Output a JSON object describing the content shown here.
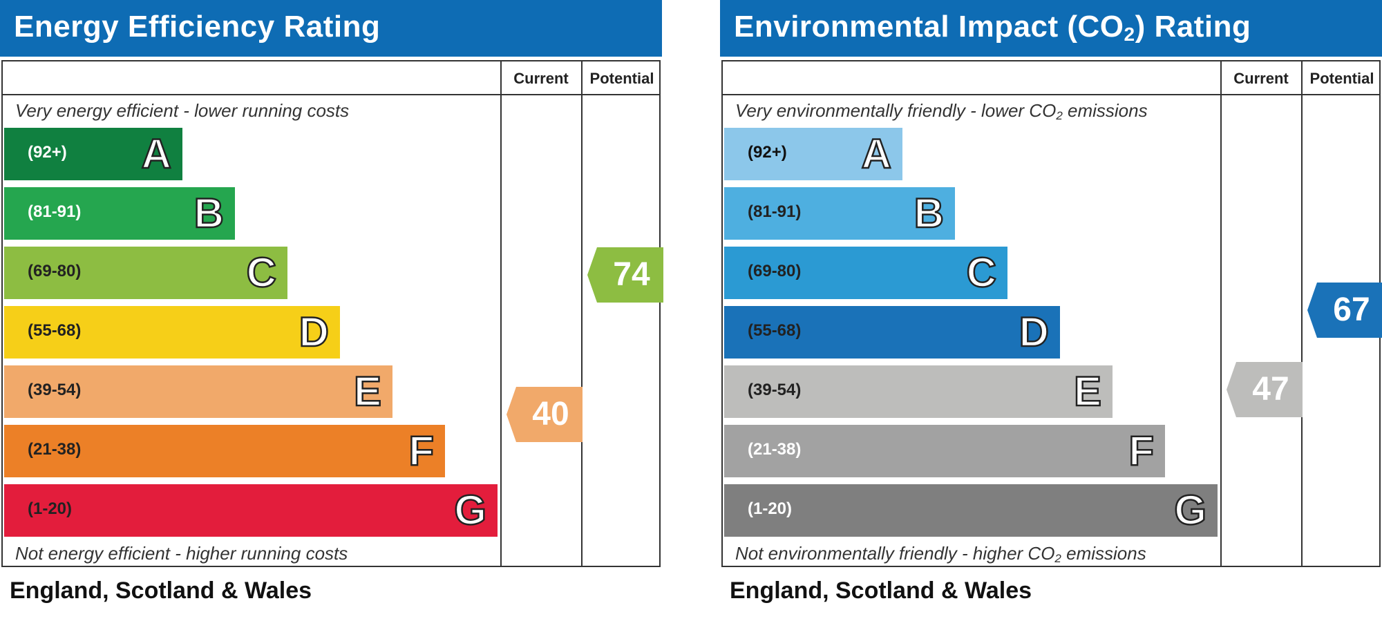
{
  "chart_data": [
    {
      "type": "bar",
      "title": "Energy Efficiency Rating",
      "columns": [
        "Current",
        "Potential"
      ],
      "caption_top": "Very energy efficient - lower running costs",
      "caption_bottom": "Not energy efficient - higher running costs",
      "footer": "England, Scotland & Wales",
      "bands": [
        {
          "letter": "A",
          "range": "(92+)",
          "min": 92,
          "max": 100,
          "color": "#108040",
          "text_color": "#ffffff"
        },
        {
          "letter": "B",
          "range": "(81-91)",
          "min": 81,
          "max": 91,
          "color": "#25a64f",
          "text_color": "#ffffff"
        },
        {
          "letter": "C",
          "range": "(69-80)",
          "min": 69,
          "max": 80,
          "color": "#8dbd42",
          "text_color": "#222222"
        },
        {
          "letter": "D",
          "range": "(55-68)",
          "min": 55,
          "max": 68,
          "color": "#f6cf18",
          "text_color": "#222222"
        },
        {
          "letter": "E",
          "range": "(39-54)",
          "min": 39,
          "max": 54,
          "color": "#f1a96a",
          "text_color": "#222222"
        },
        {
          "letter": "F",
          "range": "(21-38)",
          "min": 21,
          "max": 38,
          "color": "#ec8027",
          "text_color": "#222222"
        },
        {
          "letter": "G",
          "range": "(1-20)",
          "min": 1,
          "max": 20,
          "color": "#e31d3c",
          "text_color": "#222222"
        }
      ],
      "current": {
        "value": 40,
        "band": "E",
        "color": "#f1a96a"
      },
      "potential": {
        "value": 74,
        "band": "C",
        "color": "#8dbd42"
      }
    },
    {
      "type": "bar",
      "title_parts": {
        "before": "Environmental Impact (CO",
        "sub": "2",
        "after": ") Rating"
      },
      "columns": [
        "Current",
        "Potential"
      ],
      "caption_top_parts": {
        "before": "Very environmentally friendly - lower CO",
        "sub": "2",
        "after": " emissions"
      },
      "caption_bottom_parts": {
        "before": "Not environmentally friendly - higher CO",
        "sub": "2",
        "after": " emissions"
      },
      "footer": "England, Scotland & Wales",
      "bands": [
        {
          "letter": "A",
          "range": "(92+)",
          "min": 92,
          "max": 100,
          "color": "#8cc7ea",
          "text_color": "#111111"
        },
        {
          "letter": "B",
          "range": "(81-91)",
          "min": 81,
          "max": 91,
          "color": "#4eafe0",
          "text_color": "#222222"
        },
        {
          "letter": "C",
          "range": "(69-80)",
          "min": 69,
          "max": 80,
          "color": "#2b9ad3",
          "text_color": "#222222"
        },
        {
          "letter": "D",
          "range": "(55-68)",
          "min": 55,
          "max": 68,
          "color": "#1a72b8",
          "text_color": "#222222"
        },
        {
          "letter": "E",
          "range": "(39-54)",
          "min": 39,
          "max": 54,
          "color": "#bdbdbb",
          "text_color": "#222222"
        },
        {
          "letter": "F",
          "range": "(21-38)",
          "min": 21,
          "max": 38,
          "color": "#a2a2a2",
          "text_color": "#ffffff"
        },
        {
          "letter": "G",
          "range": "(1-20)",
          "min": 1,
          "max": 20,
          "color": "#7f7f7f",
          "text_color": "#ffffff"
        }
      ],
      "current": {
        "value": 47,
        "band": "E",
        "color": "#bdbdbb"
      },
      "potential": {
        "value": 67,
        "band": "D",
        "color": "#1a72b8"
      }
    }
  ]
}
